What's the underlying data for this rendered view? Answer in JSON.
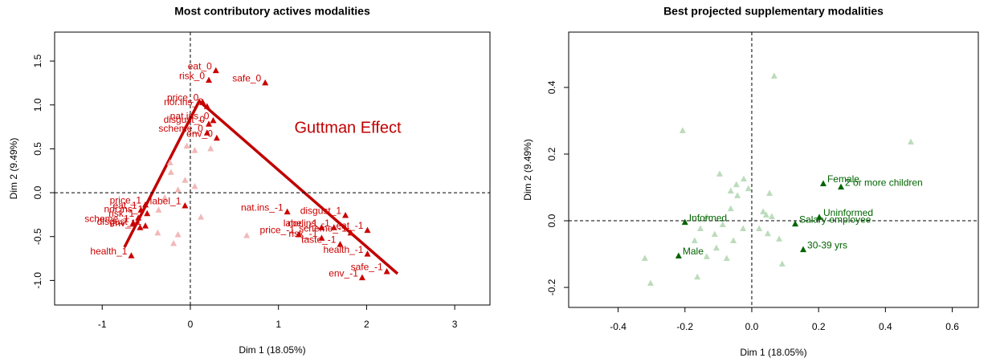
{
  "chart_data": [
    {
      "type": "scatter",
      "title": "Most contributory actives modalities",
      "x_label": "Dim 1 (18.05%)",
      "y_label": "Dim 2 (9.49%)",
      "annotation": "Guttman Effect",
      "zero_lines": true,
      "xlim": [
        -1.54,
        3.4
      ],
      "ylim": [
        -1.28,
        1.83
      ],
      "xticks": [
        -1,
        0,
        1,
        2,
        3
      ],
      "yticks": [
        {
          "value": -1,
          "label": "-1.0"
        },
        -0.5,
        {
          "value": 0,
          "label": "0.0"
        },
        0.5,
        {
          "value": 1,
          "label": "1.0"
        },
        1.5
      ],
      "series": [
        {
          "color": "#f2b8b8",
          "x": [
            -0.04,
            0.05,
            -0.23,
            -0.22,
            -0.14,
            0.05,
            -0.29,
            -0.36,
            0.12,
            -0.14,
            -0.19,
            0.64,
            -0.37,
            0.23,
            -0.06
          ],
          "y": [
            0.53,
            0.48,
            0.34,
            0.23,
            0.03,
            0.07,
            -0.06,
            -0.2,
            -0.28,
            -0.48,
            -0.58,
            -0.49,
            -0.46,
            0.5,
            0.14
          ]
        },
        {
          "color": "#cc0000",
          "labels": [
            "eat_0",
            "risk_0",
            "safe_0",
            "price_0",
            "nor.ins_0",
            "nat.ins_0",
            "disgust_0",
            "scheme_0",
            "env_0",
            "nat.ins_-1",
            "disgust_1",
            "eat_-1",
            "nor.ins_-1",
            "label_-1",
            "price_-1",
            "scheme_-1",
            "risk_-1",
            "taste_-1",
            "health_-1",
            "safe_-1",
            "env_-1",
            "price_1",
            "label_1",
            "eat_1",
            "nor.ins_1",
            "risk_1",
            "scheme_1",
            "env_1",
            "disgust_-1",
            "health_1"
          ],
          "x": [
            0.29,
            0.21,
            0.85,
            0.14,
            0.19,
            0.26,
            0.21,
            0.19,
            0.3,
            1.1,
            1.76,
            2.01,
            1.63,
            1.49,
            1.23,
            1.82,
            1.49,
            1.7,
            2.01,
            2.23,
            1.95,
            -0.51,
            -0.06,
            -0.56,
            -0.49,
            -0.59,
            -0.65,
            -0.57,
            -0.51,
            -0.67
          ],
          "y": [
            1.39,
            1.28,
            1.25,
            1.03,
            0.98,
            0.82,
            0.78,
            0.68,
            0.62,
            -0.22,
            -0.26,
            -0.43,
            -0.4,
            -0.4,
            -0.48,
            -0.46,
            -0.52,
            -0.59,
            -0.7,
            -0.9,
            -0.97,
            -0.14,
            -0.15,
            -0.2,
            -0.24,
            -0.29,
            -0.35,
            -0.4,
            -0.38,
            -0.72
          ]
        }
      ]
    },
    {
      "type": "scatter",
      "title": "Best projected supplementary modalities",
      "x_label": "Dim 1 (18.05%)",
      "y_label": "Dim 2 (9.49%)",
      "zero_lines": true,
      "xlim": [
        -0.548,
        0.678
      ],
      "ylim": [
        -0.26,
        0.566
      ],
      "xticks": [
        -0.4,
        -0.2,
        {
          "value": 0,
          "label": "0.0"
        },
        0.2,
        0.4,
        0.6
      ],
      "yticks": [
        -0.2,
        {
          "value": 0,
          "label": "0.0"
        },
        0.2,
        0.4
      ],
      "series": [
        {
          "color": "#bcdcbc",
          "x": [
            0.067,
            0.476,
            -0.207,
            -0.096,
            -0.024,
            -0.046,
            -0.063,
            -0.043,
            -0.01,
            0.053,
            0.034,
            0.043,
            0.06,
            0.022,
            0.048,
            0.082,
            0.091,
            -0.135,
            -0.154,
            -0.111,
            -0.087,
            -0.171,
            -0.106,
            -0.135,
            -0.075,
            -0.055,
            -0.32,
            -0.303,
            -0.163,
            -0.063,
            -0.026
          ],
          "y": [
            0.434,
            0.236,
            0.27,
            0.14,
            0.125,
            0.108,
            0.089,
            0.075,
            0.096,
            0.082,
            0.027,
            0.017,
            0.012,
            -0.024,
            -0.039,
            -0.055,
            -0.13,
            0.012,
            -0.024,
            -0.041,
            -0.012,
            -0.06,
            -0.082,
            -0.108,
            -0.113,
            -0.06,
            -0.113,
            -0.188,
            -0.169,
            0.036,
            -0.024
          ]
        },
        {
          "color": "#006400",
          "labels": [
            "Female",
            "2 or more children",
            "Uninformed",
            "Informed",
            "Salary employee",
            "30-39 yrs",
            "Male"
          ],
          "x": [
            0.214,
            0.267,
            0.202,
            -0.2,
            0.13,
            0.154,
            -0.219
          ],
          "y": [
            0.111,
            0.101,
            0.01,
            -0.005,
            -0.01,
            -0.087,
            -0.106
          ]
        }
      ]
    }
  ]
}
